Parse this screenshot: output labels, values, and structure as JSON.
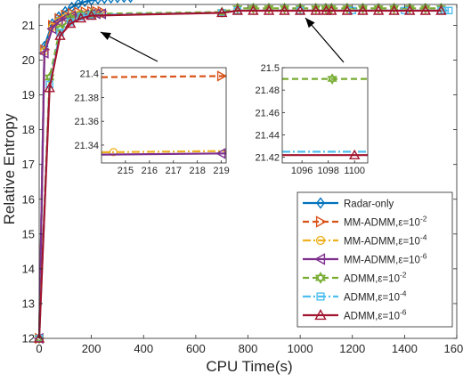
{
  "chart_data": {
    "type": "line",
    "xlabel": "CPU Time(s)",
    "ylabel": "Relative Entropy",
    "xlim": [
      0,
      1600
    ],
    "ylim": [
      12,
      21.6
    ],
    "xticks": [
      "0",
      "200",
      "400",
      "600",
      "800",
      "1000",
      "1200",
      "1400",
      "1600"
    ],
    "yticks": [
      "12",
      "13",
      "14",
      "15",
      "16",
      "17",
      "18",
      "19",
      "20",
      "21"
    ],
    "legend_placement": "bottom-right",
    "grid": false,
    "series": [
      {
        "name": "Radar-only",
        "color": "#0072BD",
        "dash": "solid",
        "marker": "diamond",
        "x": [
          0,
          20,
          50,
          75,
          100,
          125,
          150,
          175,
          200,
          225,
          250,
          275,
          300,
          325,
          350
        ],
        "y": [
          12.0,
          20.4,
          21.05,
          21.25,
          21.4,
          21.52,
          21.62,
          21.68,
          21.72,
          21.75,
          21.77,
          21.78,
          21.79,
          21.8,
          21.8
        ]
      },
      {
        "name": "MM-ADMM,ε=10^-2",
        "color": "#D95319",
        "dash": "dashed",
        "marker": "triangle-right",
        "x": [
          0,
          20,
          50,
          75,
          100,
          125,
          150,
          175,
          200,
          219,
          240
        ],
        "y": [
          12.0,
          20.3,
          21.0,
          21.2,
          21.3,
          21.35,
          21.38,
          21.39,
          21.4,
          21.4,
          21.4
        ]
      },
      {
        "name": "MM-ADMM,ε=10^-4",
        "color": "#EDB120",
        "dash": "dashdot",
        "marker": "circle",
        "x": [
          0,
          20,
          50,
          75,
          100,
          125,
          150,
          175,
          200,
          214.5,
          240
        ],
        "y": [
          12.0,
          20.25,
          20.95,
          21.12,
          21.22,
          21.27,
          21.3,
          21.32,
          21.33,
          21.335,
          21.335
        ]
      },
      {
        "name": "MM-ADMM,ε=10^-6",
        "color": "#7E2F8E",
        "dash": "solid",
        "marker": "triangle-left",
        "x": [
          0,
          20,
          50,
          75,
          100,
          125,
          150,
          175,
          200,
          219,
          240
        ],
        "y": [
          12.0,
          20.2,
          20.9,
          21.1,
          21.2,
          21.26,
          21.29,
          21.31,
          21.32,
          21.33,
          21.33
        ]
      },
      {
        "name": "ADMM,ε=10^-2",
        "color": "#77AC30",
        "dash": "dashed",
        "marker": "hexagram",
        "x": [
          0,
          40,
          80,
          120,
          160,
          200,
          700,
          760,
          820,
          880,
          940,
          1000,
          1060,
          1098,
          1120,
          1180,
          1240,
          1300,
          1360,
          1420,
          1480,
          1540
        ],
        "y": [
          12.0,
          19.5,
          20.9,
          21.2,
          21.3,
          21.33,
          21.38,
          21.49,
          21.49,
          21.49,
          21.49,
          21.49,
          21.49,
          21.49,
          21.49,
          21.49,
          21.49,
          21.49,
          21.49,
          21.49,
          21.49,
          21.49
        ]
      },
      {
        "name": "ADMM,ε=10^-4",
        "color": "#4DBEEE",
        "dash": "dashdot",
        "marker": "square",
        "x": [
          0,
          40,
          80,
          120,
          160,
          200,
          700,
          760,
          1000,
          1200,
          1400,
          1540,
          1555,
          1570
        ],
        "y": [
          12.0,
          19.3,
          20.8,
          21.1,
          21.25,
          21.3,
          21.36,
          21.425,
          21.425,
          21.425,
          21.425,
          21.425,
          21.425,
          21.425
        ]
      },
      {
        "name": "ADMM,ε=10^-6",
        "color": "#A2142F",
        "dash": "solid",
        "marker": "triangle-up",
        "x": [
          0,
          40,
          80,
          120,
          160,
          200,
          700,
          760,
          820,
          880,
          940,
          1000,
          1060,
          1100,
          1120,
          1180,
          1240,
          1300,
          1360,
          1420,
          1480,
          1540
        ],
        "y": [
          12.0,
          19.2,
          20.7,
          21.05,
          21.2,
          21.28,
          21.36,
          21.42,
          21.42,
          21.42,
          21.42,
          21.42,
          21.42,
          21.422,
          21.42,
          21.42,
          21.42,
          21.42,
          21.42,
          21.42,
          21.42,
          21.42
        ]
      }
    ],
    "legend_entries": [
      {
        "label": "Radar-only",
        "sup": ""
      },
      {
        "label": "MM-ADMM,ε=10",
        "sup": "-2"
      },
      {
        "label": "MM-ADMM,ε=10",
        "sup": "-4"
      },
      {
        "label": "MM-ADMM,ε=10",
        "sup": "-6"
      },
      {
        "label": "ADMM,ε=10",
        "sup": "-2"
      },
      {
        "label": "ADMM,ε=10",
        "sup": "-4"
      },
      {
        "label": "ADMM,ε=10",
        "sup": "-6"
      }
    ],
    "insets": [
      {
        "xlim": [
          214,
          219.2
        ],
        "ylim": [
          21.325,
          21.405
        ],
        "xticks": [
          "215",
          "216",
          "217",
          "218",
          "219"
        ],
        "yticks": [
          "21.34",
          "21.36",
          "21.38",
          "21.4"
        ],
        "series": [
          {
            "ref": 1,
            "x": [
              214,
              219.2
            ],
            "y": [
              21.397,
              21.398
            ],
            "markers_x": [
              219
            ]
          },
          {
            "ref": 2,
            "x": [
              214,
              219.2
            ],
            "y": [
              21.334,
              21.335
            ],
            "markers_x": [
              214.5
            ]
          },
          {
            "ref": 3,
            "x": [
              214,
              219.2
            ],
            "y": [
              21.332,
              21.333
            ],
            "markers_x": [
              219
            ]
          }
        ]
      },
      {
        "xlim": [
          1094.5,
          1101
        ],
        "ylim": [
          21.415,
          21.5
        ],
        "xticks": [
          "1096",
          "1098",
          "1100"
        ],
        "yticks": [
          "21.42",
          "21.44",
          "21.46",
          "21.48",
          "21.5"
        ],
        "series": [
          {
            "ref": 4,
            "x": [
              1094.5,
              1101
            ],
            "y": [
              21.49,
              21.49
            ],
            "markers_x": [
              1098.3
            ]
          },
          {
            "ref": 5,
            "x": [
              1094.5,
              1101
            ],
            "y": [
              21.425,
              21.425
            ],
            "markers_x": []
          },
          {
            "ref": 6,
            "x": [
              1094.5,
              1101
            ],
            "y": [
              21.422,
              21.422
            ],
            "markers_x": [
              1100
            ]
          }
        ]
      }
    ]
  }
}
